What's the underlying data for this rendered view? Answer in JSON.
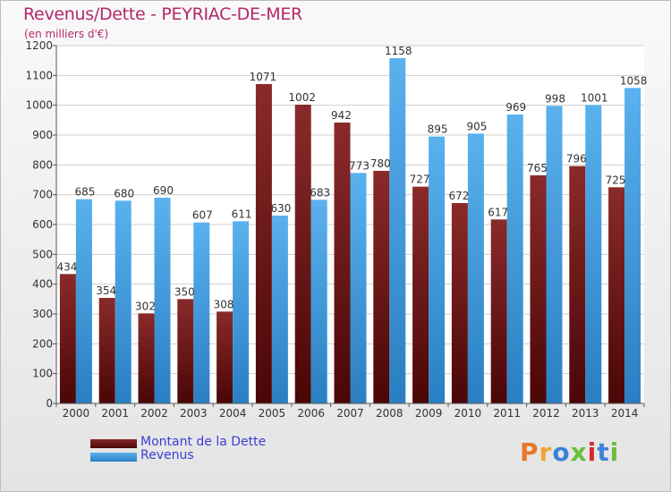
{
  "header": {
    "title": "Revenus/Dette - PEYRIAC-DE-MER",
    "subtitle": "(en milliers d'€)"
  },
  "colors": {
    "dette": "#7a1a1a",
    "revenus": "#3b9ee0",
    "title": "#b3286a",
    "legend_text": "#3c3cd6"
  },
  "legend": {
    "items": [
      {
        "label": "Montant de la Dette",
        "color": "#7a1a1a"
      },
      {
        "label": "Revenus",
        "color": "#3b9ee0"
      }
    ]
  },
  "logo": {
    "text": "Proxiti",
    "letter_colors": [
      "#e8782a",
      "#f0a531",
      "#3c82d8",
      "#6bbf3c",
      "#d8292f",
      "#3c82d8",
      "#6bbf3c"
    ]
  },
  "chart_data": {
    "type": "bar",
    "title": "Revenus/Dette - PEYRIAC-DE-MER",
    "subtitle": "(en milliers d'€)",
    "categories": [
      "2000",
      "2001",
      "2002",
      "2003",
      "2004",
      "2005",
      "2006",
      "2007",
      "2008",
      "2009",
      "2010",
      "2011",
      "2012",
      "2013",
      "2014"
    ],
    "series": [
      {
        "name": "Montant de la Dette",
        "values": [
          434,
          354,
          302,
          350,
          308,
          1071,
          1002,
          942,
          780,
          727,
          672,
          617,
          765,
          796,
          725
        ]
      },
      {
        "name": "Revenus",
        "values": [
          685,
          680,
          690,
          607,
          611,
          630,
          683,
          773,
          1158,
          895,
          905,
          969,
          998,
          1001,
          1058
        ]
      }
    ],
    "ylim": [
      0,
      1200
    ],
    "yticks": [
      0,
      100,
      200,
      300,
      400,
      500,
      600,
      700,
      800,
      900,
      1000,
      1100,
      1200
    ],
    "grid": true,
    "legend_position": "bottom-left"
  }
}
